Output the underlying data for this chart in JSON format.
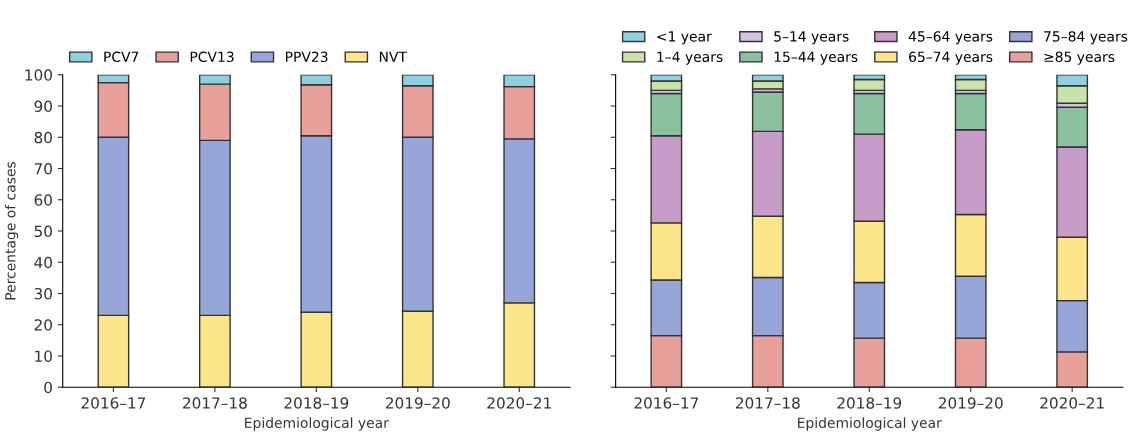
{
  "chart_data": [
    {
      "type": "bar",
      "stacked": true,
      "categories": [
        "2016–17",
        "2017–18",
        "2018–19",
        "2019–20",
        "2020–21"
      ],
      "xlabel": "Epidemiological year",
      "ylabel": "Percentage of cases",
      "ylim": [
        0,
        100
      ],
      "yticks": [
        0,
        10,
        20,
        30,
        40,
        50,
        60,
        70,
        80,
        90,
        100
      ],
      "legend": "top left",
      "grid": false,
      "series": [
        {
          "name": "NVT",
          "color": "#fde68a",
          "values": [
            23,
            23,
            24,
            24.3,
            27
          ]
        },
        {
          "name": "PPV23",
          "color": "#97a6d8",
          "values": [
            57,
            56,
            56.5,
            55.7,
            52.5
          ]
        },
        {
          "name": "PCV13",
          "color": "#e8a09a",
          "values": [
            17.5,
            18,
            16.3,
            16.5,
            16.7
          ]
        },
        {
          "name": "PCV7",
          "color": "#8fd0e0",
          "values": [
            2.5,
            3,
            3.2,
            3.5,
            3.8
          ]
        }
      ]
    },
    {
      "type": "bar",
      "stacked": true,
      "categories": [
        "2016–17",
        "2017–18",
        "2018–19",
        "2019–20",
        "2020–21"
      ],
      "xlabel": "Epidemiological year",
      "ylim": [
        0,
        100
      ],
      "yticks": [
        {
          "value": 0,
          "label": null
        },
        {
          "value": 10,
          "label": null
        },
        {
          "value": 20,
          "label": null
        },
        {
          "value": 30,
          "label": null
        },
        {
          "value": 40,
          "label": null
        },
        {
          "value": 50,
          "label": null
        },
        {
          "value": 60,
          "label": null
        },
        {
          "value": 70,
          "label": null
        },
        {
          "value": 80,
          "label": null
        },
        {
          "value": 90,
          "label": null
        },
        {
          "value": 100,
          "label": null
        }
      ],
      "tick_labels": "x",
      "legend": "top left",
      "grid": false,
      "series": [
        {
          "name": "≥85 years",
          "color": "#e8a09a",
          "values": [
            16.5,
            16.5,
            15.7,
            15.7,
            11.3
          ]
        },
        {
          "name": "75–84 years",
          "color": "#97a6d8",
          "values": [
            17.8,
            18.6,
            17.8,
            19.8,
            16.4
          ]
        },
        {
          "name": "65–74 years",
          "color": "#fde68a",
          "values": [
            18.3,
            19.6,
            19.6,
            19.8,
            20.3
          ]
        },
        {
          "name": "45–64 years",
          "color": "#c89cc8",
          "values": [
            27.9,
            27.2,
            27.9,
            27.1,
            28.9
          ]
        },
        {
          "name": "15–44 years",
          "color": "#8cc1a0",
          "values": [
            13.5,
            12.6,
            13,
            11.6,
            12.7
          ]
        },
        {
          "name": "5–14 years",
          "color": "#d8c2e0",
          "values": [
            1,
            1,
            1,
            1,
            1.3
          ]
        },
        {
          "name": "1–4 years",
          "color": "#c9e2a8",
          "values": [
            3,
            2.5,
            3.5,
            3.5,
            5.6
          ]
        },
        {
          "name": "<1 year",
          "color": "#8fd0e0",
          "values": [
            2,
            2,
            1.5,
            1.5,
            3.5
          ]
        }
      ]
    }
  ]
}
